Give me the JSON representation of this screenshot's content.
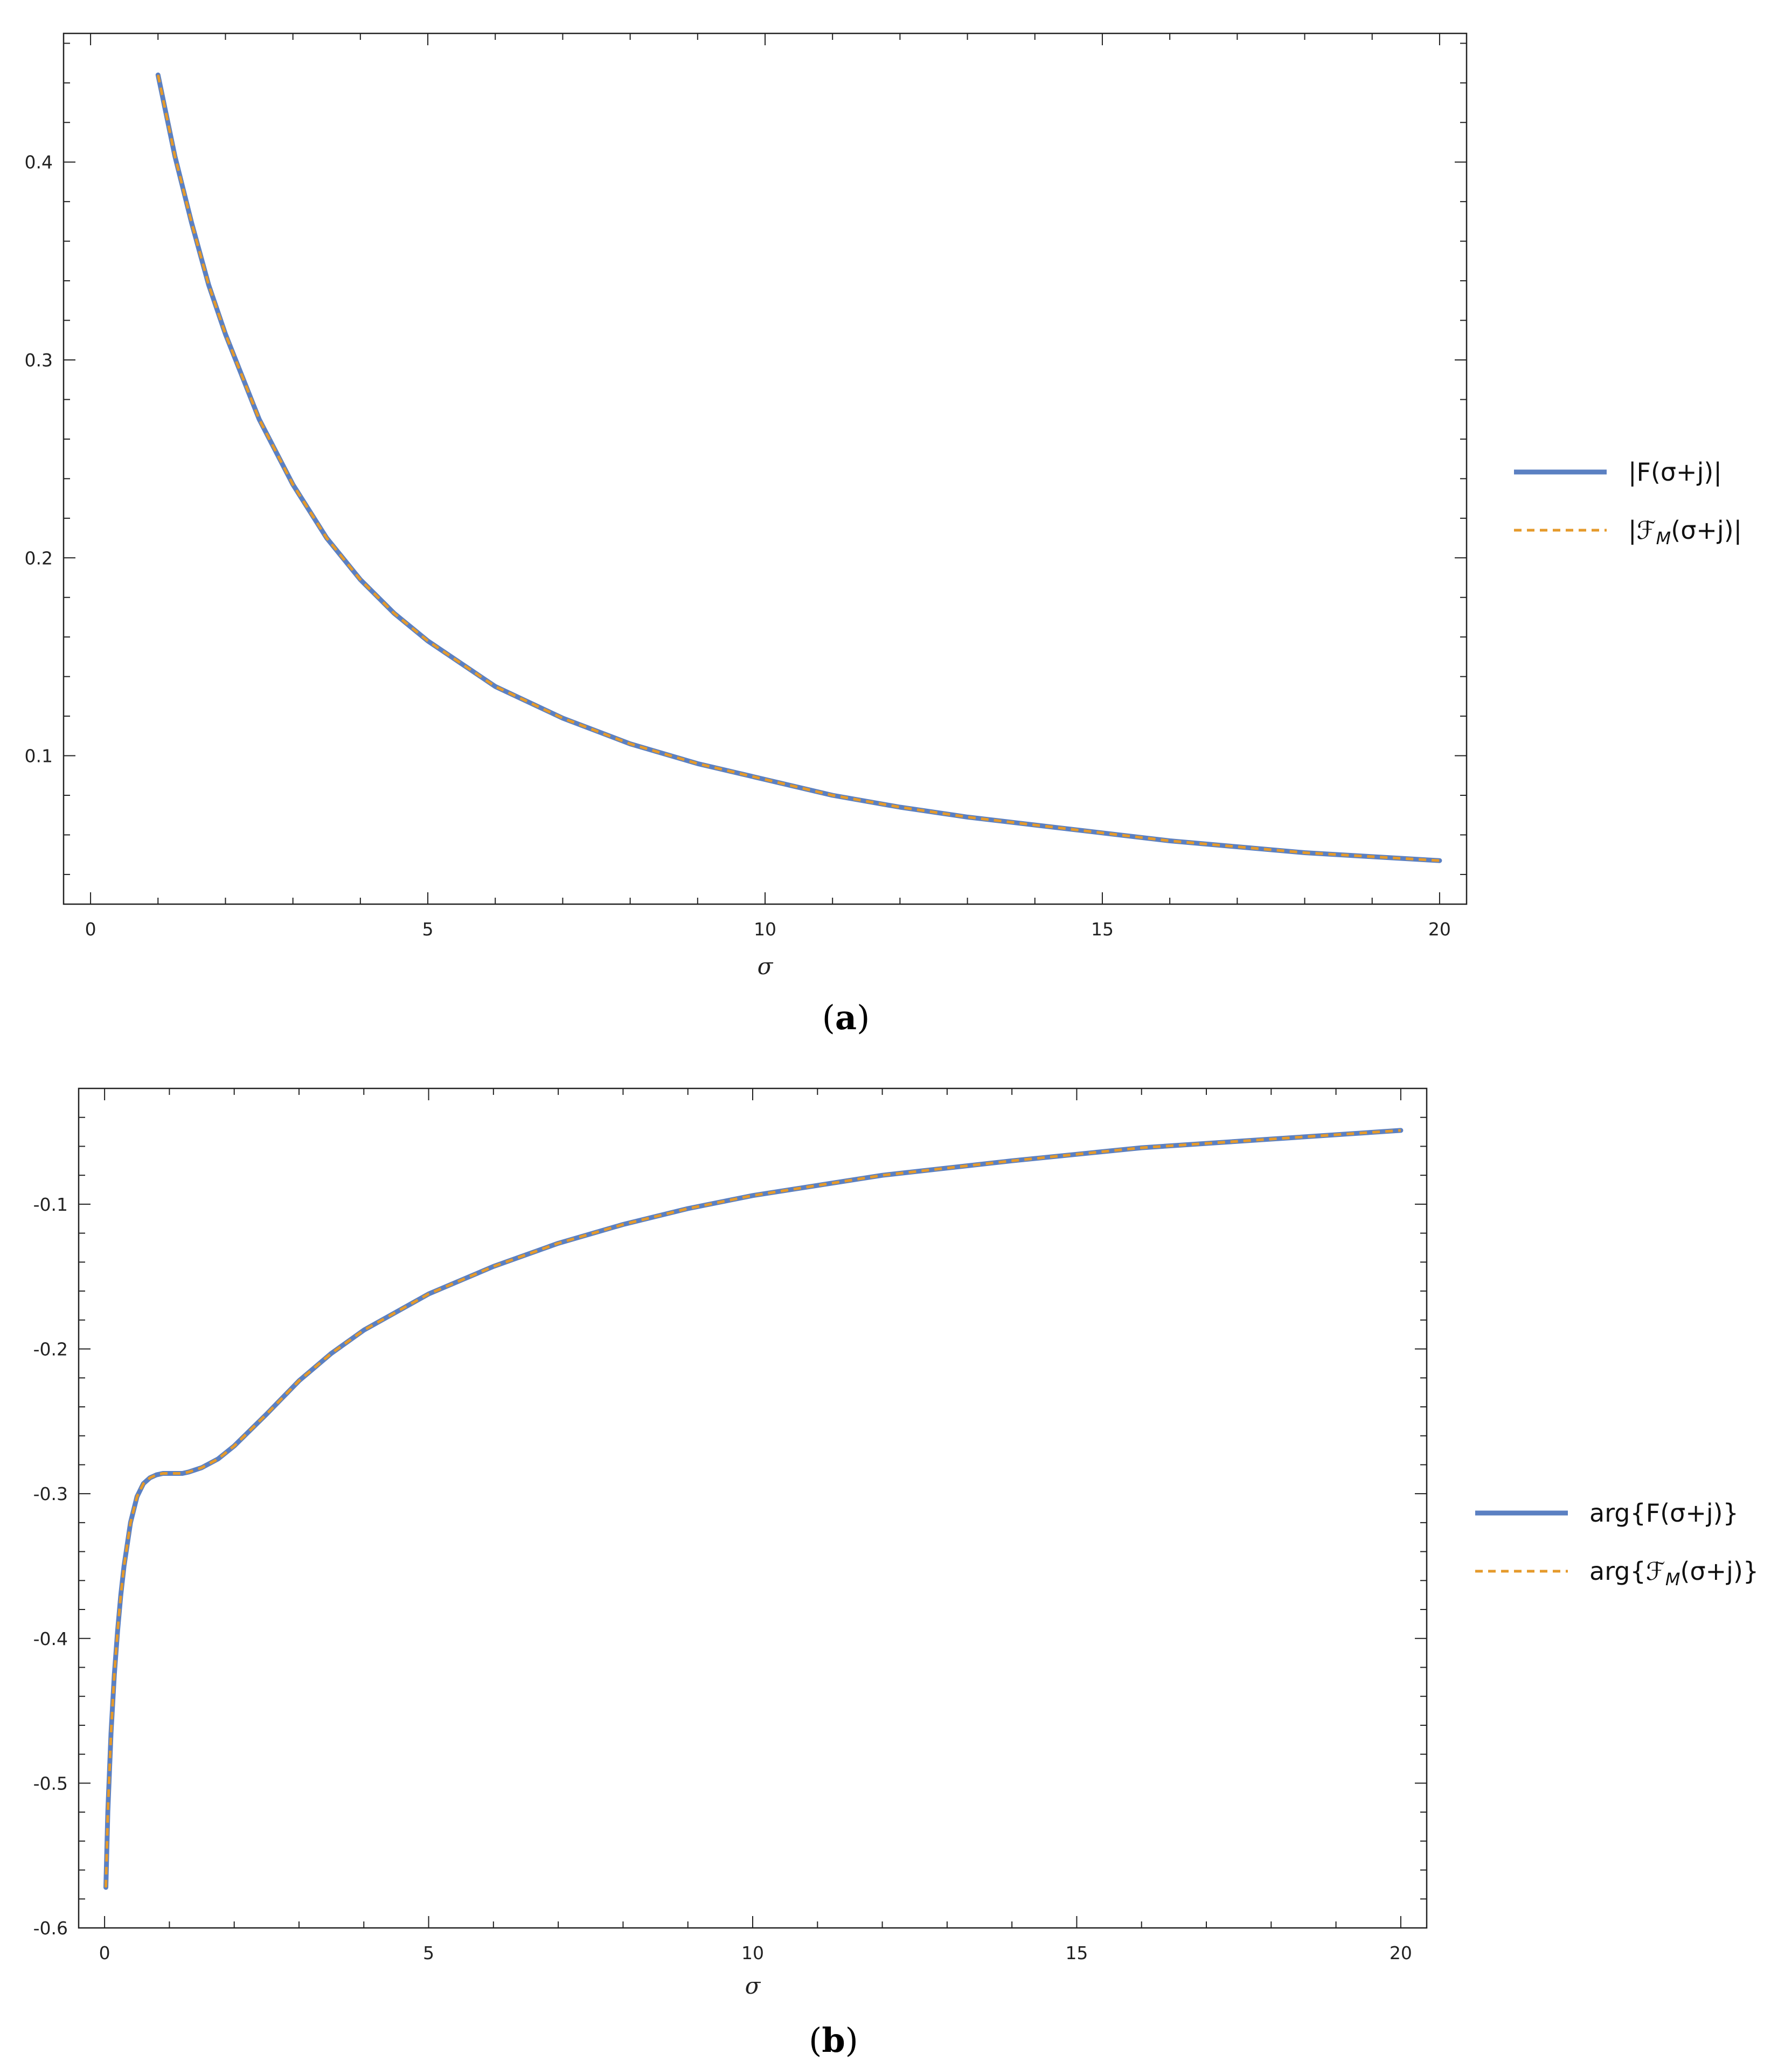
{
  "colors": {
    "series1": "#5b80c2",
    "series2": "#e59a2b"
  },
  "chart_data": [
    {
      "type": "line",
      "panel_label": "a",
      "xlabel": "σ",
      "ylabel": "",
      "xlim": [
        -0.4,
        20.4
      ],
      "ylim": [
        0.025,
        0.465
      ],
      "xticks": [
        0,
        5,
        10,
        15,
        20
      ],
      "xtick_labels": [
        "0",
        "5",
        "10",
        "15",
        "20"
      ],
      "yticks": [
        0.1,
        0.2,
        0.3,
        0.4
      ],
      "ytick_labels": [
        "0.1",
        "0.2",
        "0.3",
        "0.4"
      ],
      "legend_position": "right",
      "series": [
        {
          "name": "|F(σ+j)|",
          "style": "solid",
          "x": [
            1,
            1.25,
            1.5,
            1.75,
            2,
            2.5,
            3,
            3.5,
            4,
            4.5,
            5,
            6,
            7,
            8,
            9,
            10,
            11,
            12,
            13,
            14,
            15,
            16,
            17,
            18,
            19,
            20
          ],
          "y": [
            0.444,
            0.403,
            0.369,
            0.338,
            0.313,
            0.27,
            0.237,
            0.21,
            0.189,
            0.172,
            0.158,
            0.135,
            0.119,
            0.106,
            0.096,
            0.088,
            0.08,
            0.074,
            0.069,
            0.065,
            0.061,
            0.057,
            0.054,
            0.051,
            0.049,
            0.047
          ]
        },
        {
          "name": "|ℱ_M(σ+j)|",
          "style": "dashed",
          "x": [
            1,
            1.25,
            1.5,
            1.75,
            2,
            2.5,
            3,
            3.5,
            4,
            4.5,
            5,
            6,
            7,
            8,
            9,
            10,
            11,
            12,
            13,
            14,
            15,
            16,
            17,
            18,
            19,
            20
          ],
          "y": [
            0.444,
            0.403,
            0.369,
            0.338,
            0.313,
            0.27,
            0.237,
            0.21,
            0.189,
            0.172,
            0.158,
            0.135,
            0.119,
            0.106,
            0.096,
            0.088,
            0.08,
            0.074,
            0.069,
            0.065,
            0.061,
            0.057,
            0.054,
            0.051,
            0.049,
            0.047
          ]
        }
      ]
    },
    {
      "type": "line",
      "panel_label": "b",
      "xlabel": "σ",
      "ylabel": "",
      "xlim": [
        -0.4,
        20.4
      ],
      "ylim": [
        -0.6,
        -0.02
      ],
      "xticks": [
        0,
        5,
        10,
        15,
        20
      ],
      "xtick_labels": [
        "0",
        "5",
        "10",
        "15",
        "20"
      ],
      "yticks": [
        -0.6,
        -0.5,
        -0.4,
        -0.3,
        -0.2,
        -0.1
      ],
      "ytick_labels": [
        "-0.6",
        "-0.5",
        "-0.4",
        "-0.3",
        "-0.2",
        "-0.1"
      ],
      "legend_position": "right",
      "series": [
        {
          "name": "arg{F(σ+j)}",
          "style": "solid",
          "x": [
            0.02,
            0.05,
            0.1,
            0.15,
            0.2,
            0.25,
            0.3,
            0.4,
            0.5,
            0.6,
            0.7,
            0.8,
            0.9,
            1.0,
            1.1,
            1.2,
            1.3,
            1.5,
            1.75,
            2.0,
            2.5,
            3.0,
            3.5,
            4.0,
            5.0,
            6.0,
            7.0,
            8.0,
            9.0,
            10.0,
            12.0,
            14.0,
            16.0,
            18.0,
            20.0
          ],
          "y": [
            -0.572,
            -0.52,
            -0.465,
            -0.425,
            -0.395,
            -0.37,
            -0.35,
            -0.32,
            -0.302,
            -0.293,
            -0.289,
            -0.287,
            -0.286,
            -0.286,
            -0.286,
            -0.286,
            -0.285,
            -0.282,
            -0.276,
            -0.267,
            -0.245,
            -0.222,
            -0.203,
            -0.187,
            -0.162,
            -0.143,
            -0.127,
            -0.114,
            -0.103,
            -0.094,
            -0.08,
            -0.07,
            -0.061,
            -0.055,
            -0.049
          ]
        },
        {
          "name": "arg{ℱ_M(σ+j)}",
          "style": "dashed",
          "x": [
            0.02,
            0.05,
            0.1,
            0.15,
            0.2,
            0.25,
            0.3,
            0.4,
            0.5,
            0.6,
            0.7,
            0.8,
            0.9,
            1.0,
            1.1,
            1.2,
            1.3,
            1.5,
            1.75,
            2.0,
            2.5,
            3.0,
            3.5,
            4.0,
            5.0,
            6.0,
            7.0,
            8.0,
            9.0,
            10.0,
            12.0,
            14.0,
            16.0,
            18.0,
            20.0
          ],
          "y": [
            -0.572,
            -0.52,
            -0.465,
            -0.425,
            -0.395,
            -0.37,
            -0.35,
            -0.32,
            -0.302,
            -0.293,
            -0.289,
            -0.287,
            -0.286,
            -0.286,
            -0.286,
            -0.286,
            -0.285,
            -0.282,
            -0.276,
            -0.267,
            -0.245,
            -0.222,
            -0.203,
            -0.187,
            -0.162,
            -0.143,
            -0.127,
            -0.114,
            -0.103,
            -0.094,
            -0.08,
            -0.07,
            -0.061,
            -0.055,
            -0.049
          ]
        }
      ]
    }
  ]
}
